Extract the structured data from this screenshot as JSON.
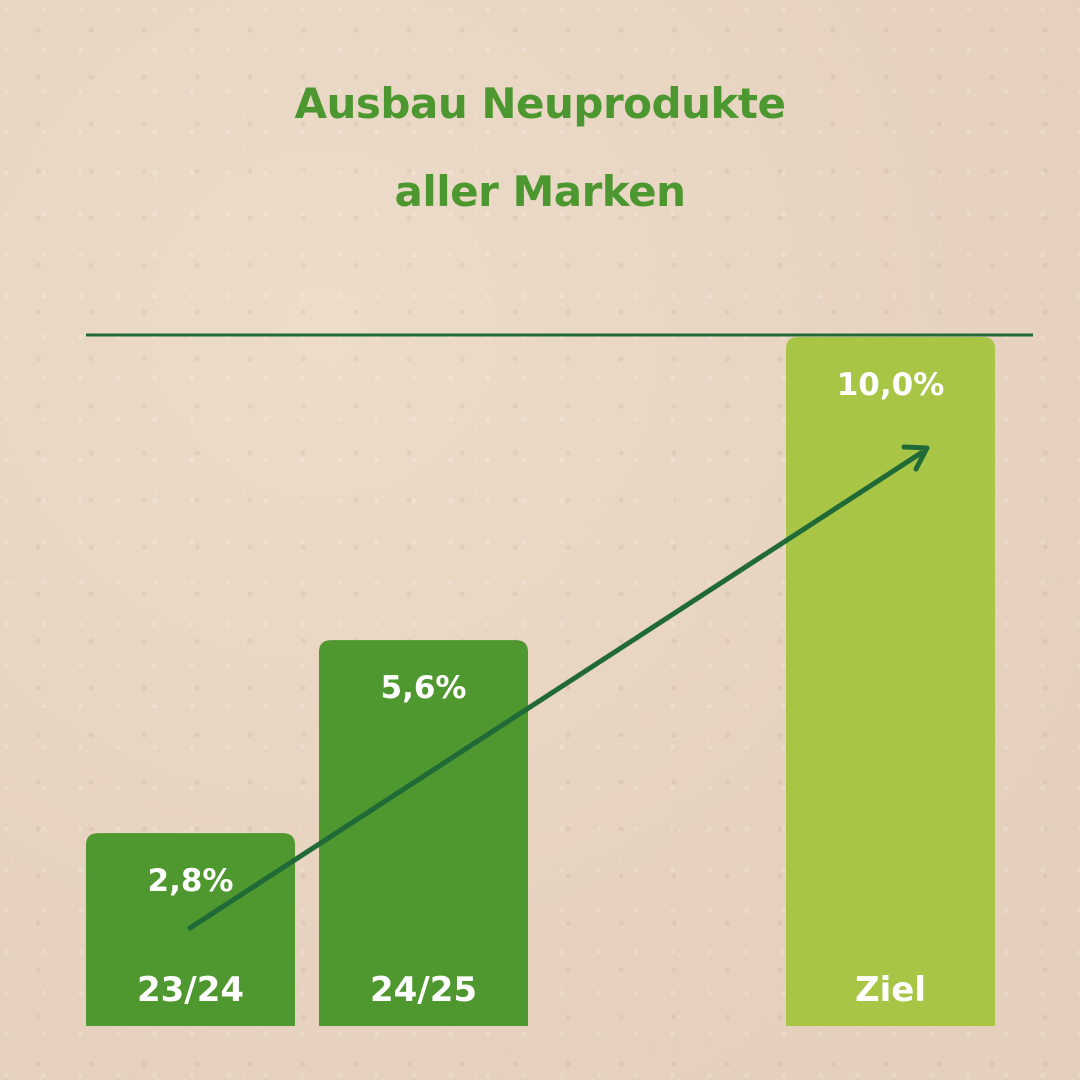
{
  "title": {
    "line1": "Ausbau Neuprodukte",
    "line2": "aller Marken"
  },
  "colors": {
    "title": "#4c972f",
    "bar_actual": "#4f972f",
    "bar_target": "#a8c545",
    "reference_line": "#1f6a37",
    "arrow": "#1f6a37",
    "label_text": "#ffffff",
    "background": "#ead8c6"
  },
  "chart_data": {
    "type": "bar",
    "title": "Ausbau Neuprodukte aller Marken",
    "categories": [
      "23/24",
      "24/25",
      "Ziel"
    ],
    "values": [
      2.8,
      5.6,
      10.0
    ],
    "value_labels": [
      "2,8%",
      "5,6%",
      "10,0%"
    ],
    "kinds": [
      "actual",
      "actual",
      "target"
    ],
    "ylim": [
      0,
      10
    ],
    "reference_line": 10.0,
    "trend_arrow": true,
    "grid": false,
    "legend": "none"
  }
}
